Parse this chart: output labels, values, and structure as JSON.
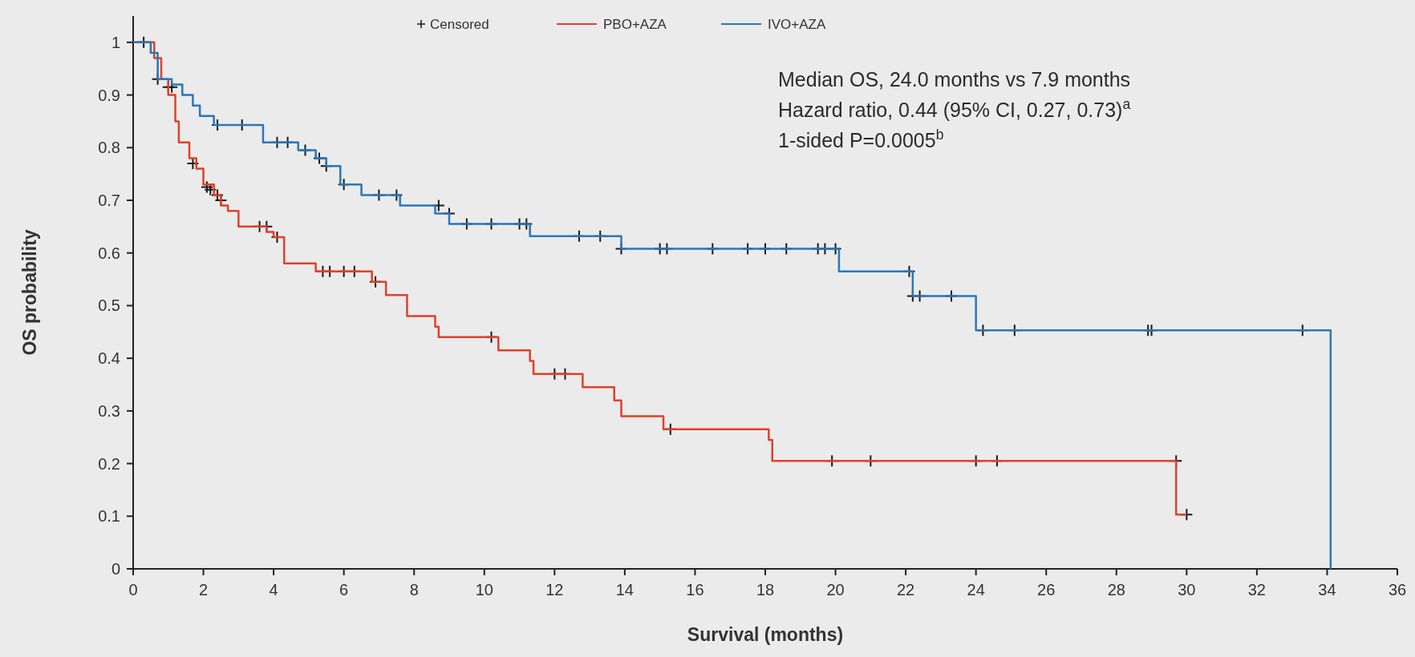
{
  "chart_data": {
    "type": "step",
    "xlabel": "Survival (months)",
    "ylabel": "OS probability",
    "xlim": [
      0,
      36
    ],
    "xticks": [
      0,
      2,
      4,
      6,
      8,
      10,
      12,
      14,
      16,
      18,
      20,
      22,
      24,
      26,
      28,
      30,
      32,
      34,
      36
    ],
    "ylim": [
      0,
      1.05
    ],
    "yticks": [
      0,
      0.1,
      0.2,
      0.3,
      0.4,
      0.5,
      0.6,
      0.7,
      0.8,
      0.9,
      1
    ],
    "grid": false,
    "legend": "top",
    "line_style": "solid",
    "annotations": [
      "Median OS, 24.0 months vs 7.9 months",
      "Hazard ratio, 0.44 (95% CI, 0.27, 0.73)$^{a}$",
      "1-sided P=0.0005$^{b}$"
    ],
    "series": [
      {
        "type": "scatter",
        "name": "Censored",
        "color": "#1a1a1a",
        "marker": "cross",
        "x": [
          0.3,
          1.0,
          1.1,
          2.4,
          3.1,
          4.1,
          4.4,
          4.9,
          5.3,
          5.5,
          6.0,
          7.0,
          7.5,
          8.7,
          9.0,
          9.5,
          10.2,
          11.0,
          11.2,
          12.7,
          13.3,
          13.9,
          15.0,
          15.2,
          16.5,
          17.5,
          18.0,
          18.6,
          19.5,
          19.7,
          20.0,
          22.1,
          22.2,
          22.4,
          23.3,
          24.2,
          25.1,
          28.9,
          29.0,
          33.3,
          0.7,
          1.7,
          2.1,
          2.2,
          2.4,
          2.5,
          3.6,
          3.8,
          4.1,
          5.4,
          5.6,
          6.0,
          6.3,
          6.9,
          10.2,
          12.0,
          12.3,
          15.3,
          19.9,
          21.0,
          24.0,
          24.6,
          29.7,
          30.0
        ],
        "values": [
          1.0,
          0.915,
          0.915,
          0.843,
          0.843,
          0.81,
          0.81,
          0.795,
          0.78,
          0.765,
          0.73,
          0.71,
          0.71,
          0.69,
          0.675,
          0.655,
          0.655,
          0.655,
          0.655,
          0.632,
          0.632,
          0.608,
          0.608,
          0.608,
          0.608,
          0.608,
          0.608,
          0.608,
          0.608,
          0.608,
          0.608,
          0.565,
          0.518,
          0.518,
          0.518,
          0.453,
          0.453,
          0.453,
          0.453,
          0.453,
          0.93,
          0.77,
          0.725,
          0.72,
          0.71,
          0.7,
          0.65,
          0.65,
          0.63,
          0.565,
          0.565,
          0.565,
          0.565,
          0.545,
          0.44,
          0.37,
          0.37,
          0.265,
          0.205,
          0.205,
          0.205,
          0.205,
          0.205,
          0.103
        ]
      },
      {
        "name": "PBO+AZA",
        "color": "#e0402a",
        "x": [
          0,
          0.6,
          0.8,
          1.0,
          1.2,
          1.3,
          1.6,
          1.8,
          2.0,
          2.3,
          2.5,
          2.7,
          3.0,
          3.8,
          4.0,
          4.3,
          5.2,
          6.8,
          7.2,
          7.8,
          8.6,
          8.7,
          10.4,
          11.3,
          11.4,
          12.8,
          13.7,
          13.9,
          15.1,
          18.1,
          18.2,
          29.7,
          30.0
        ],
        "values": [
          1.0,
          0.97,
          0.93,
          0.9,
          0.85,
          0.81,
          0.78,
          0.76,
          0.73,
          0.71,
          0.69,
          0.68,
          0.65,
          0.64,
          0.63,
          0.58,
          0.565,
          0.545,
          0.52,
          0.48,
          0.46,
          0.44,
          0.415,
          0.395,
          0.37,
          0.345,
          0.32,
          0.29,
          0.265,
          0.245,
          0.205,
          0.103,
          0.103
        ]
      },
      {
        "name": "IVO+AZA",
        "color": "#2a77b8",
        "x": [
          0,
          0.5,
          0.7,
          1.1,
          1.4,
          1.7,
          1.9,
          2.3,
          3.7,
          4.7,
          5.2,
          5.5,
          5.9,
          6.5,
          7.6,
          8.6,
          9.0,
          11.3,
          13.9,
          20.1,
          22.2,
          24.0,
          34.1
        ],
        "values": [
          1.0,
          0.98,
          0.93,
          0.92,
          0.9,
          0.88,
          0.86,
          0.843,
          0.81,
          0.795,
          0.78,
          0.765,
          0.73,
          0.71,
          0.69,
          0.675,
          0.655,
          0.632,
          0.608,
          0.565,
          0.518,
          0.453,
          0.0
        ]
      }
    ]
  }
}
